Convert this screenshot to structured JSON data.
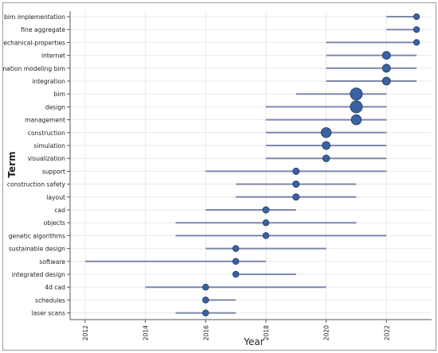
{
  "chart_data": {
    "type": "scatter",
    "xlabel": "Year",
    "ylabel": "Term",
    "xlim": [
      2011.5,
      2023.5
    ],
    "x_ticks": [
      "2012",
      "2014",
      "2016",
      "2018",
      "2020",
      "2022"
    ],
    "x_tick_values": [
      2012,
      2014,
      2016,
      2018,
      2020,
      2022
    ],
    "grid": true,
    "terms": [
      {
        "label": "bim implementation",
        "start": 2022,
        "end": 2023,
        "peak": 2023,
        "size": 1
      },
      {
        "label": "fine aggregate",
        "start": 2022,
        "end": 2023,
        "peak": 2023,
        "size": 1
      },
      {
        "label": "mechanical-properties",
        "start": 2020,
        "end": 2023,
        "peak": 2023,
        "size": 1
      },
      {
        "label": "internet",
        "start": 2020,
        "end": 2023,
        "peak": 2022,
        "size": 2
      },
      {
        "label": "information modeling bim",
        "start": 2020,
        "end": 2023,
        "peak": 2022,
        "size": 2
      },
      {
        "label": "integration",
        "start": 2020,
        "end": 2023,
        "peak": 2022,
        "size": 2
      },
      {
        "label": "bim",
        "start": 2019,
        "end": 2022,
        "peak": 2021,
        "size": 4
      },
      {
        "label": "design",
        "start": 2018,
        "end": 2022,
        "peak": 2021,
        "size": 4
      },
      {
        "label": "management",
        "start": 2018,
        "end": 2022,
        "peak": 2021,
        "size": 3
      },
      {
        "label": "construction",
        "start": 2018,
        "end": 2022,
        "peak": 2020,
        "size": 3
      },
      {
        "label": "simulation",
        "start": 2018,
        "end": 2022,
        "peak": 2020,
        "size": 2
      },
      {
        "label": "visualization",
        "start": 2018,
        "end": 2022,
        "peak": 2020,
        "size": 1.5
      },
      {
        "label": "support",
        "start": 2016,
        "end": 2022,
        "peak": 2019,
        "size": 1.3
      },
      {
        "label": "construction safety",
        "start": 2017,
        "end": 2021,
        "peak": 2019,
        "size": 1.3
      },
      {
        "label": "layout",
        "start": 2017,
        "end": 2021,
        "peak": 2019,
        "size": 1.3
      },
      {
        "label": "cad",
        "start": 2016,
        "end": 2019,
        "peak": 2018,
        "size": 1.3
      },
      {
        "label": "objects",
        "start": 2015,
        "end": 2021,
        "peak": 2018,
        "size": 1.1
      },
      {
        "label": "genetic algorithms",
        "start": 2015,
        "end": 2022,
        "peak": 2018,
        "size": 1.1
      },
      {
        "label": "sustainable design",
        "start": 2016,
        "end": 2020,
        "peak": 2017,
        "size": 1.1
      },
      {
        "label": "software",
        "start": 2012,
        "end": 2018,
        "peak": 2017,
        "size": 1.1
      },
      {
        "label": "integrated design",
        "start": 2017,
        "end": 2019,
        "peak": 2017,
        "size": 1.1
      },
      {
        "label": "4d cad",
        "start": 2014,
        "end": 2020,
        "peak": 2016,
        "size": 1.1
      },
      {
        "label": "schedules",
        "start": 2016,
        "end": 2017,
        "peak": 2016,
        "size": 1.1
      },
      {
        "label": "laser scans",
        "start": 2015,
        "end": 2017,
        "peak": 2016,
        "size": 1.1
      }
    ],
    "colors": {
      "bar": "#7f86ad",
      "point_fill": "#3a62a0",
      "point_stroke": "#1f3a66",
      "grid": "#e8e8e8"
    }
  }
}
